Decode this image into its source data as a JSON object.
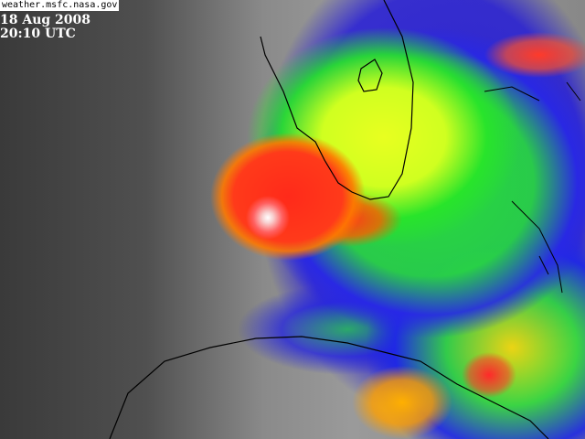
{
  "source": "weather.msfc.nasa.gov",
  "date": "18 Aug 2008",
  "time": "20:10 UTC"
}
